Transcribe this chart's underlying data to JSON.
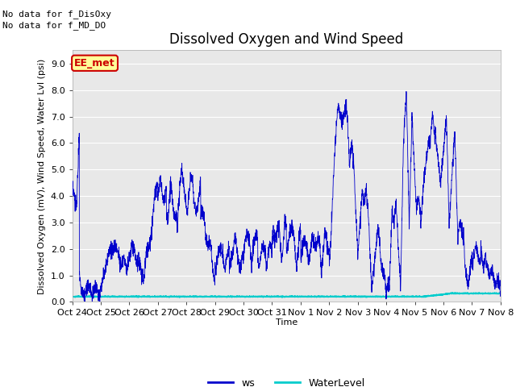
{
  "title": "Dissolved Oxygen and Wind Speed",
  "ylabel": "Dissolved Oxygen (mV), Wind Speed, Water Lvl (psi)",
  "xlabel": "Time",
  "annotation_line1": "No data for f_DisOxy",
  "annotation_line2": "No data for f_MD_DO",
  "station_label": "EE_met",
  "station_label_color": "#cc0000",
  "station_label_bg": "#ffff99",
  "ylim": [
    0.0,
    9.5
  ],
  "yticks": [
    0.0,
    1.0,
    2.0,
    3.0,
    4.0,
    5.0,
    6.0,
    7.0,
    8.0,
    9.0
  ],
  "xtick_labels": [
    "Oct 24",
    "Oct 25",
    "Oct 26",
    "Oct 27",
    "Oct 28",
    "Oct 29",
    "Oct 30",
    "Oct 31",
    "Nov 1",
    "Nov 2",
    "Nov 3",
    "Nov 4",
    "Nov 5",
    "Nov 6",
    "Nov 7",
    "Nov 8"
  ],
  "ws_color": "#0000cc",
  "water_color": "#00cccc",
  "plot_bg_color": "#e8e8e8",
  "legend_ws": "ws",
  "legend_water": "WaterLevel",
  "title_fontsize": 12,
  "label_fontsize": 8,
  "tick_fontsize": 8,
  "annot_fontsize": 8
}
